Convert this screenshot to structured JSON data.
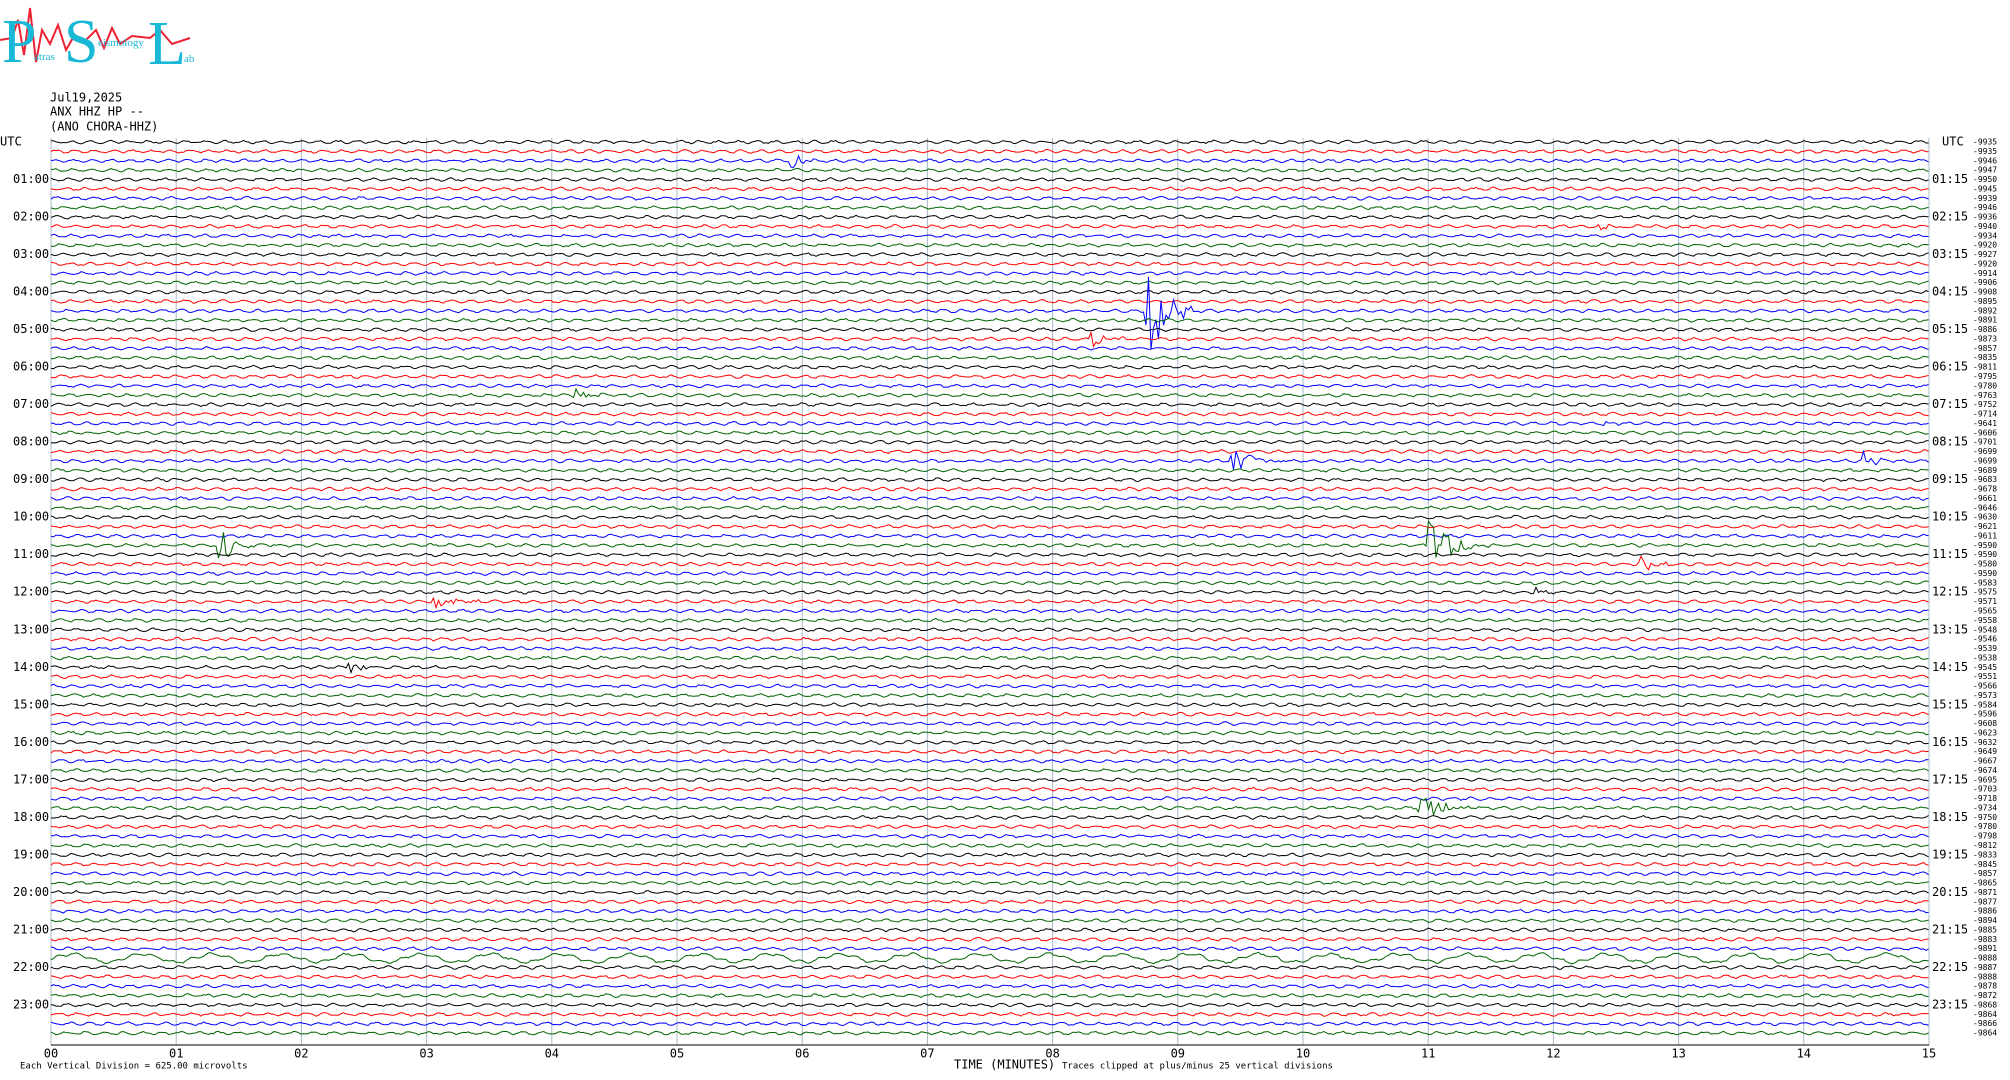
{
  "header": {
    "logo": {
      "p": "P",
      "p_rest": "atras",
      "s": "S",
      "s_rest": "eismology",
      "l": "L",
      "l_rest": "ab"
    },
    "date": "Jul19,2025",
    "station": "ANX HHZ HP --",
    "location": "(ANO CHORA-HHZ)"
  },
  "plot": {
    "left_labels": [
      "UTC",
      "01:00",
      "02:00",
      "03:00",
      "04:00",
      "05:00",
      "06:00",
      "07:00",
      "08:00",
      "09:00",
      "10:00",
      "11:00",
      "12:00",
      "13:00",
      "14:00",
      "15:00",
      "16:00",
      "17:00",
      "18:00",
      "19:00",
      "20:00",
      "21:00",
      "22:00",
      "23:00"
    ],
    "right_labels": [
      "UTC",
      "01:15",
      "02:15",
      "03:15",
      "04:15",
      "05:15",
      "06:15",
      "07:15",
      "08:15",
      "09:15",
      "10:15",
      "11:15",
      "12:15",
      "13:15",
      "14:15",
      "15:15",
      "16:15",
      "17:15",
      "18:15",
      "19:15",
      "20:15",
      "21:15",
      "22:15",
      "23:15"
    ],
    "offsets": [
      -9935,
      -9935,
      -9946,
      -9947,
      -9950,
      -9945,
      -9939,
      -9946,
      -9936,
      -9940,
      -9934,
      -9920,
      -9927,
      -9920,
      -9914,
      -9906,
      -9908,
      -9895,
      -9892,
      -9891,
      -9886,
      -9873,
      -9857,
      -9835,
      -9811,
      -9795,
      -9780,
      -9763,
      -9752,
      -9714,
      -9641,
      -9606,
      -9701,
      -9699,
      -9699,
      -9689,
      -9683,
      -9678,
      -9661,
      -9646,
      -9630,
      -9621,
      -9611,
      -9590,
      -9590,
      -9580,
      -9590,
      -9583,
      -9575,
      -9571,
      -9565,
      -9558,
      -9548,
      -9546,
      -9539,
      -9538,
      -9545,
      -9551,
      -9566,
      -9573,
      -9584,
      -9596,
      -9608,
      -9623,
      -9632,
      -9649,
      -9667,
      -9674,
      -9695,
      -9703,
      -9718,
      -9734,
      -9750,
      -9780,
      -9798,
      -9812,
      -9833,
      -9845,
      -9857,
      -9865,
      -9871,
      -9877,
      -9886,
      -9894,
      -9885,
      -9883,
      -9891,
      -9888,
      -9887,
      -9888,
      -9878,
      -9872,
      -9868,
      -9864,
      -9866,
      -9864
    ],
    "trace_colors": [
      "#000000",
      "#ff0000",
      "#0000ff",
      "#006400"
    ],
    "xlim": [
      0,
      15
    ],
    "xticks": [
      {
        "value": 0,
        "label": "00"
      },
      {
        "value": 1,
        "label": "01"
      },
      {
        "value": 2,
        "label": "02"
      },
      {
        "value": 3,
        "label": "03"
      },
      {
        "value": 4,
        "label": "04"
      },
      {
        "value": 5,
        "label": "05"
      },
      {
        "value": 6,
        "label": "06"
      },
      {
        "value": 7,
        "label": "07"
      },
      {
        "value": 8,
        "label": "08"
      },
      {
        "value": 9,
        "label": "09"
      },
      {
        "value": 10,
        "label": "10"
      },
      {
        "value": 11,
        "label": "11"
      },
      {
        "value": 12,
        "label": "12"
      },
      {
        "value": 13,
        "label": "13"
      },
      {
        "value": 14,
        "label": "14"
      },
      {
        "value": 15,
        "label": "15"
      }
    ],
    "x_label": "TIME (MINUTES)"
  },
  "footer": {
    "scale": "Each Vertical Division =  625.00 microvolts",
    "clip": "Traces clipped at plus/minus 25 vertical divisions"
  }
}
